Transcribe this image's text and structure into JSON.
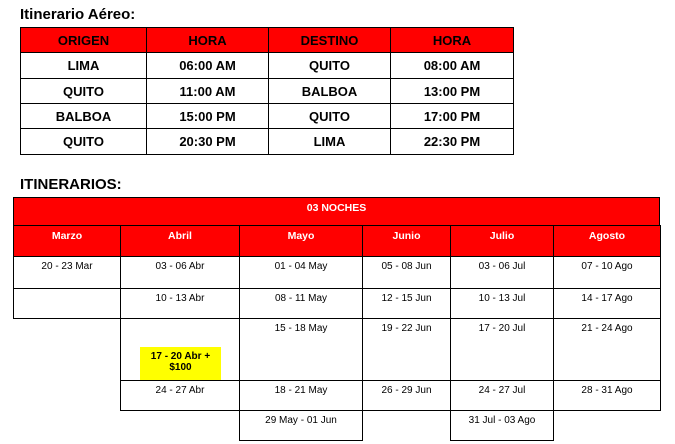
{
  "flight": {
    "title": "Itinerario Aéreo:",
    "headers": [
      "ORIGEN",
      "HORA",
      "DESTINO",
      "HORA"
    ],
    "rows": [
      [
        "LIMA",
        "06:00 AM",
        "QUITO",
        "08:00 AM"
      ],
      [
        "QUITO",
        "11:00 AM",
        "BALBOA",
        "13:00 PM"
      ],
      [
        "BALBOA",
        "15:00 PM",
        "QUITO",
        "17:00 PM"
      ],
      [
        "QUITO",
        "20:30 PM",
        "LIMA",
        "22:30 PM"
      ]
    ]
  },
  "itin": {
    "title": "ITINERARIOS:",
    "banner": "03 NOCHES",
    "months": [
      "Marzo",
      "Abril",
      "Mayo",
      "Junio",
      "Julio",
      "Agosto"
    ],
    "rows": [
      [
        "20 - 23 Mar",
        "03 - 06 Abr",
        "01 - 04 May",
        "05 - 08 Jun",
        "03 - 06 Jul",
        "07 - 10 Ago"
      ],
      [
        "",
        "10 - 13 Abr",
        "08 - 11 May",
        "12 - 15 Jun",
        "10 - 13 Jul",
        "14 - 17 Ago"
      ],
      [
        null,
        "",
        "15 - 18 May",
        "19 - 22 Jun",
        "17 - 20 Jul",
        "21 - 24 Ago"
      ],
      [
        null,
        "24 - 27 Abr",
        "18 - 21 May",
        "26 - 29 Jun",
        "24 - 27 Jul",
        "28 - 31 Ago"
      ],
      [
        null,
        null,
        "29 May - 01 Jun",
        null,
        "31 Jul - 03 Ago",
        null
      ]
    ],
    "highlight": "17 - 20 Abr + $100"
  },
  "colors": {
    "header": "#ff0000",
    "highlight": "#ffff00"
  }
}
